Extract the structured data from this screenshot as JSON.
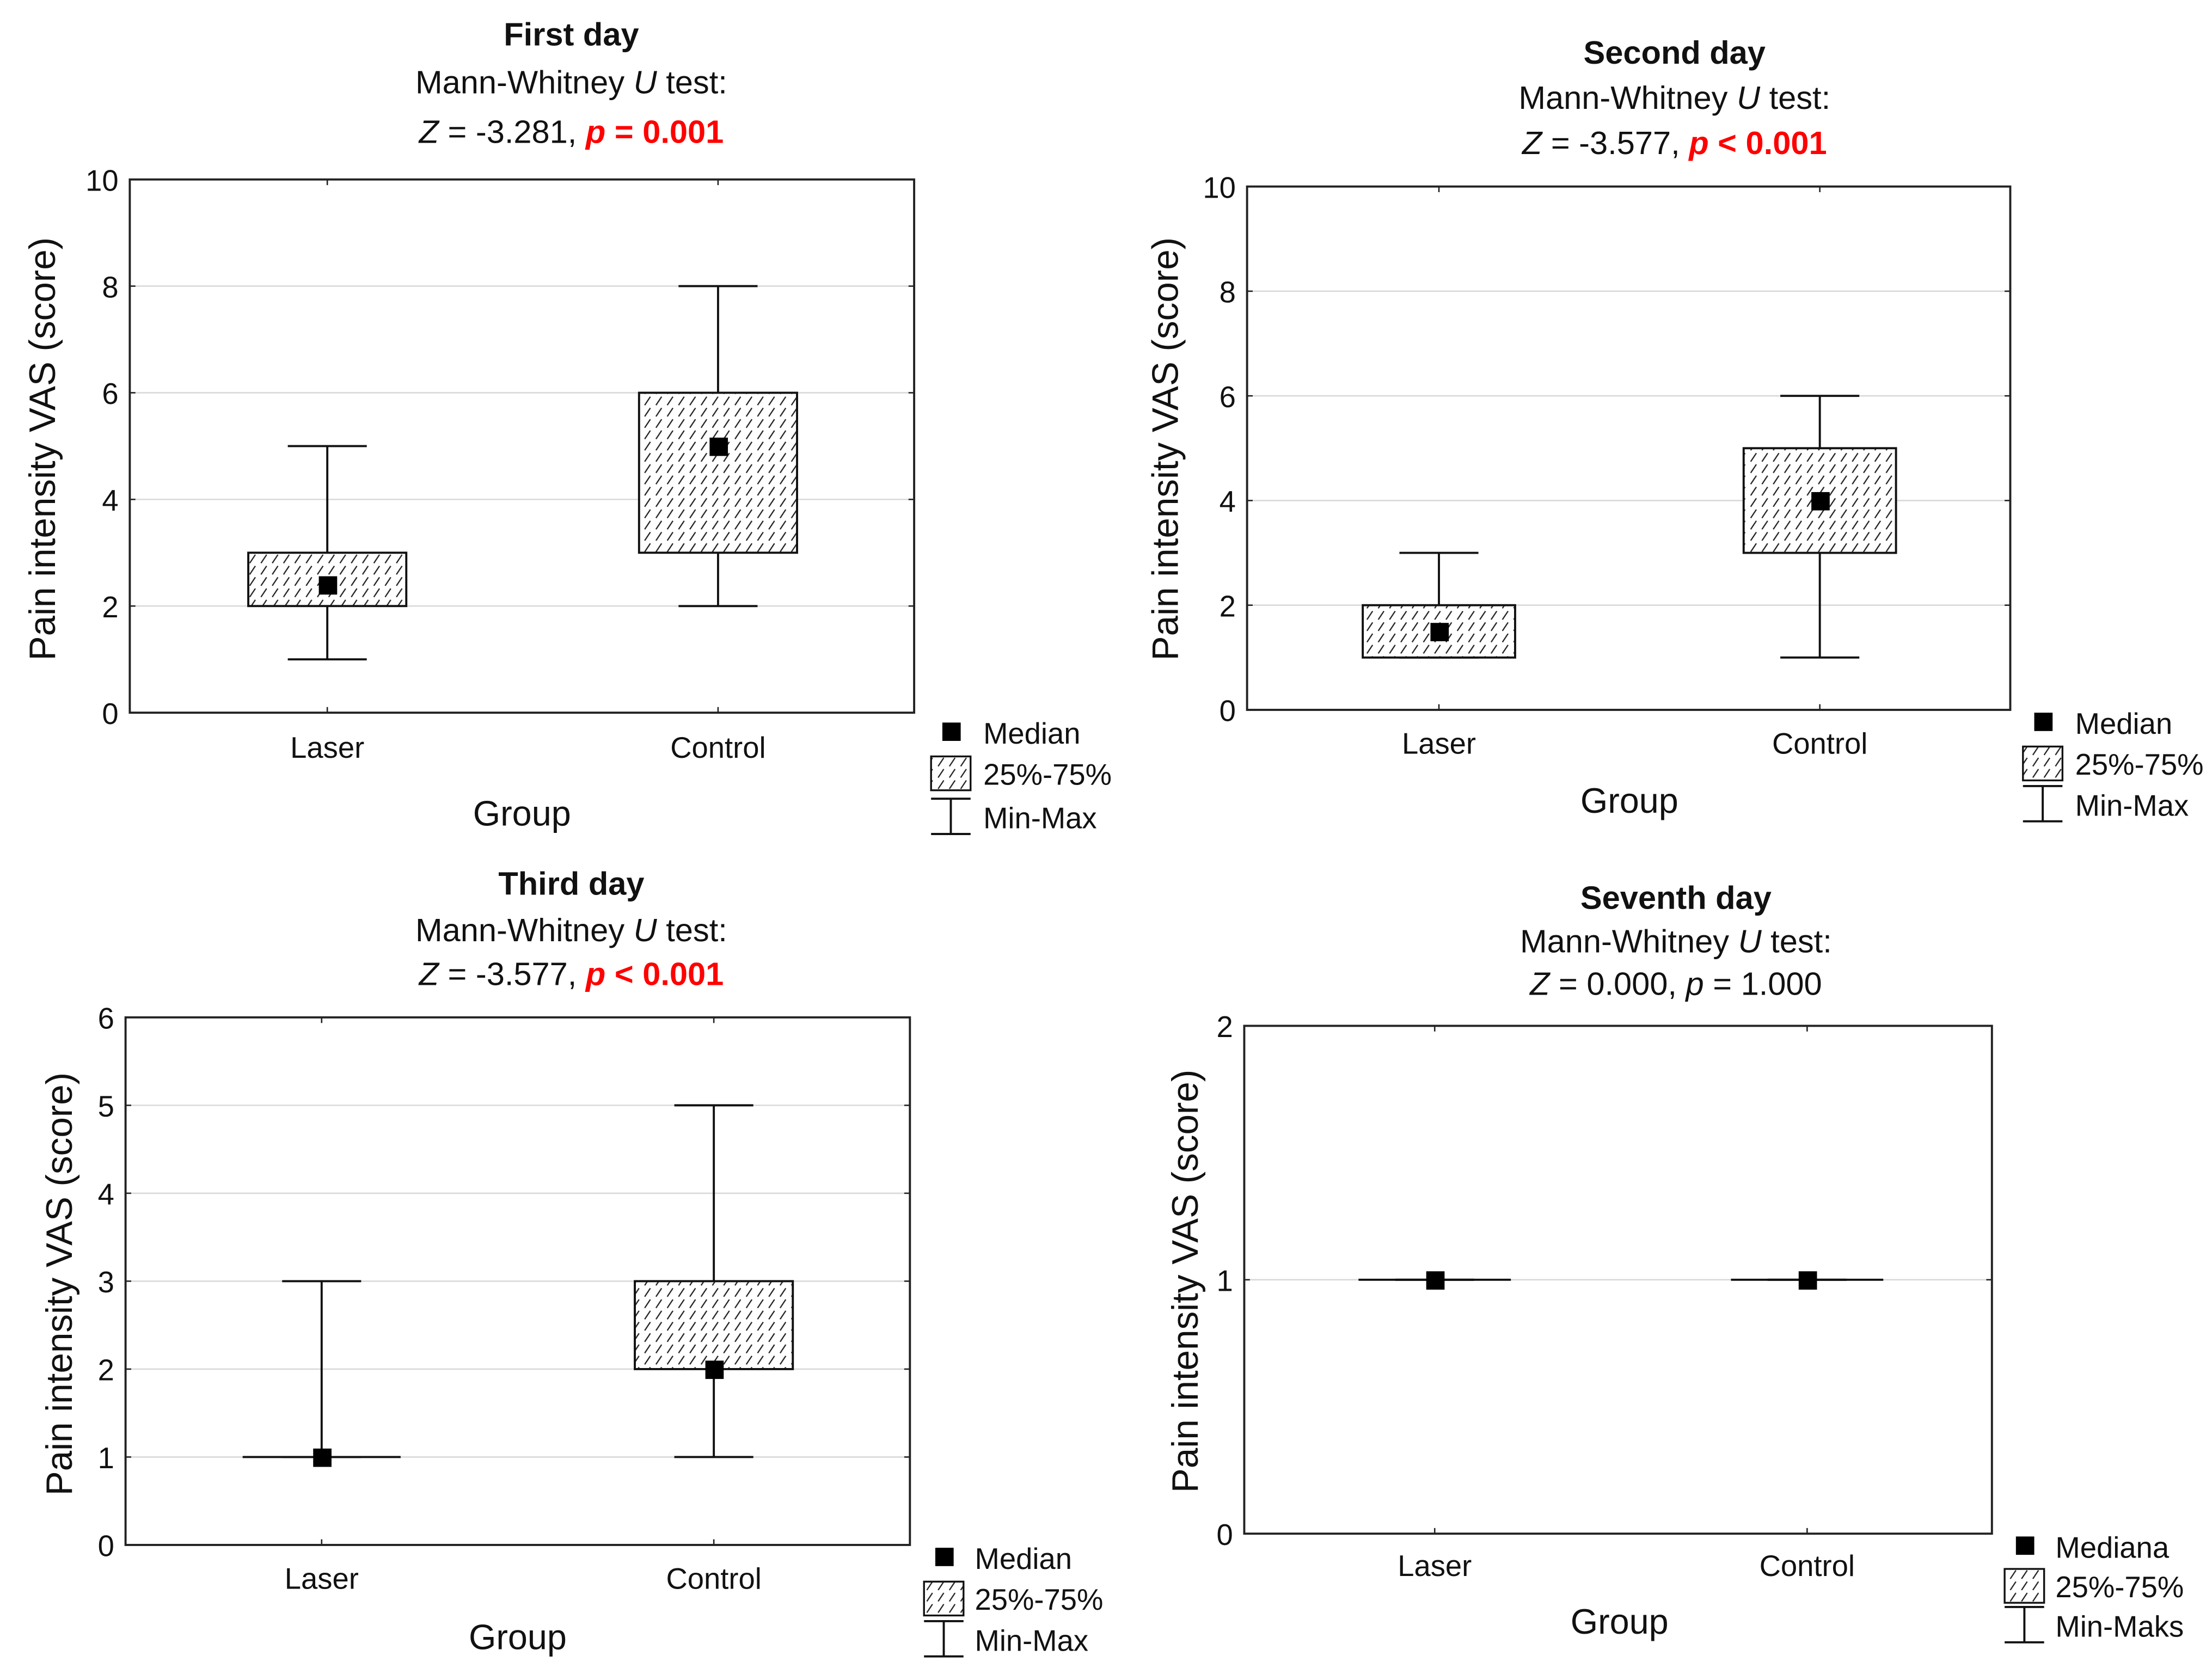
{
  "chart_data": [
    {
      "type": "boxplot",
      "title": "First day",
      "test_name": {
        "pre": "Mann-Whitney ",
        "italic": "U",
        "post": " test:"
      },
      "stat": {
        "z_symbol": "Z",
        "z_text": " = -3.281,",
        "p_symbol": "p",
        "p_text": " = 0.001",
        "significant": true
      },
      "ylabel": "Pain intensity VAS (score)",
      "xlabel": "Group",
      "categories": [
        "Laser",
        "Control"
      ],
      "ylim": [
        0,
        10
      ],
      "yticks": [
        0,
        2,
        4,
        6,
        8,
        10
      ],
      "series": [
        {
          "category": "Laser",
          "median": 2.4,
          "q1": 2,
          "q3": 3,
          "min": 1,
          "max": 5
        },
        {
          "category": "Control",
          "median": 5,
          "q1": 3,
          "q3": 6,
          "min": 2,
          "max": 8
        }
      ],
      "legend": [
        "Median",
        "25%-75%",
        "Min-Max"
      ],
      "grid": true
    },
    {
      "type": "boxplot",
      "title": "Second day",
      "test_name": {
        "pre": "Mann-Whitney ",
        "italic": "U",
        "post": " test:"
      },
      "stat": {
        "z_symbol": "Z",
        "z_text": " = -3.577,",
        "p_symbol": "p",
        "p_text": " < 0.001",
        "significant": true
      },
      "ylabel": "Pain intensity VAS (score)",
      "xlabel": "Group",
      "categories": [
        "Laser",
        "Control"
      ],
      "ylim": [
        0,
        10
      ],
      "yticks": [
        0,
        2,
        4,
        6,
        8,
        10
      ],
      "series": [
        {
          "category": "Laser",
          "median": 1.5,
          "q1": 1,
          "q3": 2,
          "min": 1,
          "max": 3
        },
        {
          "category": "Control",
          "median": 4,
          "q1": 3,
          "q3": 5,
          "min": 1,
          "max": 6
        }
      ],
      "legend": [
        "Median",
        "25%-75%",
        "Min-Max"
      ],
      "grid": true
    },
    {
      "type": "boxplot",
      "title": "Third day",
      "test_name": {
        "pre": "Mann-Whitney ",
        "italic": "U",
        "post": " test:"
      },
      "stat": {
        "z_symbol": "Z",
        "z_text": " = -3.577,",
        "p_symbol": "p",
        "p_text": " < 0.001",
        "significant": true
      },
      "ylabel": "Pain intensity VAS (score)",
      "xlabel": "Group",
      "categories": [
        "Laser",
        "Control"
      ],
      "ylim": [
        0,
        6
      ],
      "yticks": [
        0,
        1,
        2,
        3,
        4,
        5,
        6
      ],
      "series": [
        {
          "category": "Laser",
          "median": 1,
          "q1": 1,
          "q3": 1,
          "min": 1,
          "max": 3
        },
        {
          "category": "Control",
          "median": 2,
          "q1": 2,
          "q3": 3,
          "min": 1,
          "max": 5
        }
      ],
      "legend": [
        "Median",
        "25%-75%",
        "Min-Max"
      ],
      "grid": true
    },
    {
      "type": "boxplot",
      "title": "Seventh day",
      "test_name": {
        "pre": "Mann-Whitney ",
        "italic": "U",
        "post": " test:"
      },
      "stat": {
        "z_symbol": "Z",
        "z_text": " = 0.000,",
        "p_symbol": "p",
        "p_text": " = 1.000",
        "significant": false
      },
      "ylabel": "Pain intensity VAS (score)",
      "xlabel": "Group",
      "categories": [
        "Laser",
        "Control"
      ],
      "ylim": [
        0,
        2
      ],
      "yticks": [
        0,
        1,
        2
      ],
      "series": [
        {
          "category": "Laser",
          "median": 1,
          "q1": 1,
          "q3": 1,
          "min": 1,
          "max": 1
        },
        {
          "category": "Control",
          "median": 1,
          "q1": 1,
          "q3": 1,
          "min": 1,
          "max": 1
        }
      ],
      "legend": [
        "Mediana",
        "25%-75%",
        "Min-Maks"
      ],
      "grid": true
    }
  ],
  "colors": {
    "significant": "#ff0000",
    "text": "#111111",
    "grid": "#d9d9d9"
  }
}
